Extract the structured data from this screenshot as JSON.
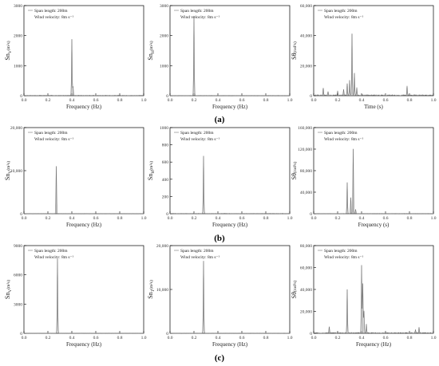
{
  "row_labels": [
    "(a)",
    "(b)",
    "(c)"
  ],
  "chart_data": [
    {
      "type": "line",
      "legend": {
        "entries": [
          "Span length: 200m",
          "Wind velocity: 8m s⁻¹"
        ],
        "placement": "top-left"
      },
      "xlabel": "Frequency (Hz)",
      "ylabel_main": "Sn",
      "ylabel_sub": "V",
      "ylabel_unit": "(m²s)",
      "xlim": [
        0,
        1
      ],
      "ylim": [
        0,
        3000
      ],
      "xticks": [
        "0.0",
        "0.2",
        "0.4",
        "0.6",
        "0.8",
        "1.0"
      ],
      "yticks": [
        "0",
        "1000",
        "2000",
        "3000"
      ],
      "grid": false,
      "peaks": [
        {
          "x": 0.4,
          "y": 1870
        },
        {
          "x": 0.41,
          "y": 300
        }
      ],
      "noise_level": 15
    },
    {
      "type": "line",
      "legend": {
        "entries": [
          "Span length: 200m",
          "Wind velocity: 8m s⁻¹"
        ],
        "placement": "top-left"
      },
      "xlabel": "Frequency (Hz)",
      "ylabel_main": "Sn",
      "ylabel_sub": "H",
      "ylabel_unit": "(m²s)",
      "xlim": [
        0,
        1
      ],
      "ylim": [
        0,
        3000
      ],
      "xticks": [
        "0.0",
        "0.2",
        "0.4",
        "0.6",
        "0.8",
        "1.0"
      ],
      "yticks": [
        "0",
        "1000",
        "2000",
        "3000"
      ],
      "grid": false,
      "peaks": [
        {
          "x": 0.2,
          "y": 2650
        }
      ],
      "noise_level": 10
    },
    {
      "type": "line",
      "legend": {
        "entries": [
          "Span length: 200m",
          "Wind velocity: 8m s⁻¹"
        ],
        "placement": "top-left"
      },
      "xlabel": "Time (s)",
      "ylabel_main": "Sθ",
      "ylabel_sub": "",
      "ylabel_unit": "(rad²s)",
      "xlim": [
        0,
        1
      ],
      "ylim": [
        0,
        60000
      ],
      "xticks": [
        "0.0",
        "0.2",
        "0.4",
        "0.6",
        "0.8",
        "1.0"
      ],
      "yticks": [
        "0",
        "20,000",
        "40,000",
        "60,000"
      ],
      "grid": false,
      "peaks": [
        {
          "x": 0.08,
          "y": 5000
        },
        {
          "x": 0.12,
          "y": 2500
        },
        {
          "x": 0.2,
          "y": 3000
        },
        {
          "x": 0.25,
          "y": 4000
        },
        {
          "x": 0.28,
          "y": 8000
        },
        {
          "x": 0.3,
          "y": 10000
        },
        {
          "x": 0.32,
          "y": 41000
        },
        {
          "x": 0.34,
          "y": 15000
        },
        {
          "x": 0.36,
          "y": 5000
        },
        {
          "x": 0.78,
          "y": 6000
        }
      ],
      "noise_level": 600
    },
    {
      "type": "line",
      "legend": {
        "entries": [
          "Span length: 200m",
          "Wind velocity: 8m s⁻¹"
        ],
        "placement": "top-left"
      },
      "xlabel": "Frequency (Hz)",
      "ylabel_main": "Sn",
      "ylabel_sub": "V",
      "ylabel_unit": "(m²s)",
      "xlim": [
        0,
        1
      ],
      "ylim": [
        0,
        20000
      ],
      "xticks": [
        "0.0",
        "0.2",
        "0.4",
        "0.6",
        "0.8",
        "1.0"
      ],
      "yticks": [
        "0",
        "10,000",
        "20,000"
      ],
      "grid": false,
      "peaks": [
        {
          "x": 0.27,
          "y": 11000
        }
      ],
      "noise_level": 50
    },
    {
      "type": "line",
      "legend": {
        "entries": [
          "Span length: 200m",
          "Wind velocity: 8m s⁻¹"
        ],
        "placement": "top-left"
      },
      "xlabel": "Frequency (Hz)",
      "ylabel_main": "Sn",
      "ylabel_sub": "H",
      "ylabel_unit": "(m²s)",
      "xlim": [
        0,
        1
      ],
      "ylim": [
        0,
        1000
      ],
      "xticks": [
        "0.0",
        "0.2",
        "0.4",
        "0.6",
        "0.8",
        "1.0"
      ],
      "yticks": [
        "0",
        "200",
        "400",
        "600",
        "800",
        "1000"
      ],
      "grid": false,
      "peaks": [
        {
          "x": 0.28,
          "y": 670
        }
      ],
      "noise_level": 4
    },
    {
      "type": "line",
      "legend": {
        "entries": [
          "Span length: 200m",
          "Wind velocity: 8m s⁻¹"
        ],
        "placement": "top-left"
      },
      "xlabel": "Frequency (s)",
      "ylabel_main": "Sθ",
      "ylabel_sub": "",
      "ylabel_unit": "(rad²s)",
      "xlim": [
        0,
        1
      ],
      "ylim": [
        0,
        160000
      ],
      "xticks": [
        "0.0",
        "0.2",
        "0.4",
        "0.6",
        "0.8",
        "1.0"
      ],
      "yticks": [
        "0",
        "40,000",
        "80,000",
        "120,000",
        "160,000"
      ],
      "grid": false,
      "peaks": [
        {
          "x": 0.28,
          "y": 58000
        },
        {
          "x": 0.31,
          "y": 30000
        },
        {
          "x": 0.33,
          "y": 120000
        },
        {
          "x": 0.35,
          "y": 8000
        }
      ],
      "noise_level": 500
    },
    {
      "type": "line",
      "legend": {
        "entries": [
          "Span length: 200m",
          "Wind velocity: 8m s⁻¹"
        ],
        "placement": "top-left"
      },
      "xlabel": "Frequency (Hz)",
      "ylabel_main": "Sn",
      "ylabel_sub": "V",
      "ylabel_unit": "(m²s)",
      "xlim": [
        0,
        1
      ],
      "ylim": [
        0,
        9000
      ],
      "xticks": [
        "0.0",
        "0.2",
        "0.4",
        "0.6",
        "0.8",
        "1.0"
      ],
      "yticks": [
        "0",
        "3000",
        "6000",
        "9000"
      ],
      "grid": false,
      "peaks": [
        {
          "x": 0.28,
          "y": 7600
        }
      ],
      "noise_level": 20
    },
    {
      "type": "line",
      "legend": {
        "entries": [
          "Span length: 200m",
          "Wind velocity: 8m s⁻¹"
        ],
        "placement": "top-left"
      },
      "xlabel": "Frequency (Hz)",
      "ylabel_main": "Sn",
      "ylabel_sub": "T",
      "ylabel_unit": "(m²s)",
      "xlim": [
        0,
        1
      ],
      "ylim": [
        0,
        20000
      ],
      "xticks": [
        "0.0",
        "0.2",
        "0.4",
        "0.6",
        "0.8",
        "1.0"
      ],
      "yticks": [
        "0",
        "10,000",
        "20,000"
      ],
      "grid": false,
      "peaks": [
        {
          "x": 0.28,
          "y": 16500
        }
      ],
      "noise_level": 50
    },
    {
      "type": "line",
      "legend": {
        "entries": [
          "Span length: 200m",
          "Wind velocity: 8m s⁻¹"
        ],
        "placement": "top-left"
      },
      "xlabel": "Frequency (Hz)",
      "ylabel_main": "Sθ",
      "ylabel_sub": "",
      "ylabel_unit": "(rad²s)",
      "xlim": [
        0,
        1
      ],
      "ylim": [
        0,
        80000
      ],
      "xticks": [
        "0.0",
        "0.2",
        "0.4",
        "0.6",
        "0.8",
        "1.0"
      ],
      "yticks": [
        "0",
        "20,000",
        "40,000",
        "60,000",
        "80,000"
      ],
      "grid": false,
      "peaks": [
        {
          "x": 0.13,
          "y": 6000
        },
        {
          "x": 0.28,
          "y": 40000
        },
        {
          "x": 0.4,
          "y": 62000
        },
        {
          "x": 0.41,
          "y": 45000
        },
        {
          "x": 0.42,
          "y": 20000
        },
        {
          "x": 0.44,
          "y": 8000
        },
        {
          "x": 0.85,
          "y": 3000
        },
        {
          "x": 0.88,
          "y": 5000
        }
      ],
      "noise_level": 700
    }
  ]
}
